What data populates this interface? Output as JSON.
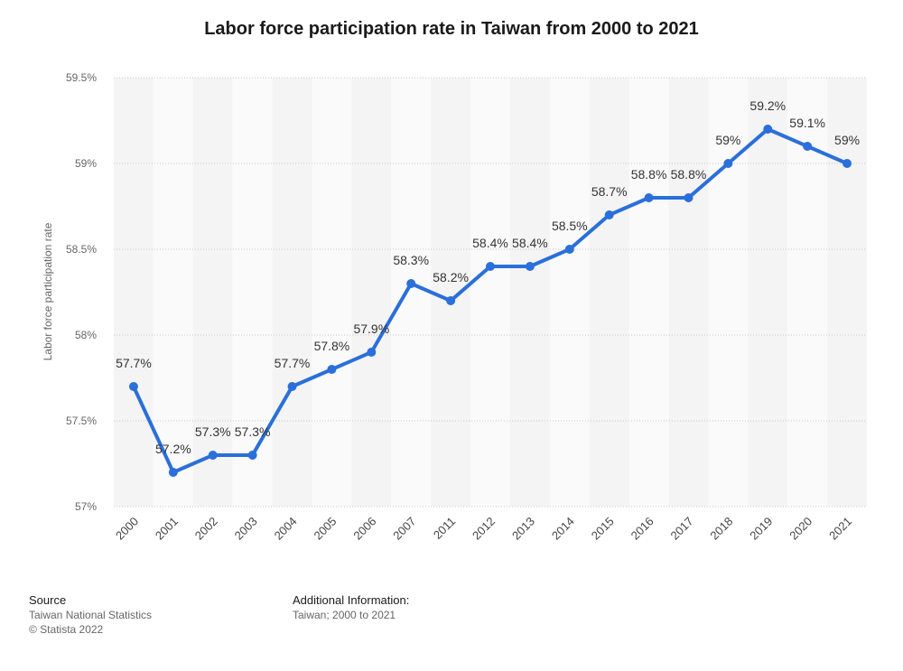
{
  "chart_data": {
    "type": "line",
    "title": "Labor force participation rate in Taiwan from 2000 to 2021",
    "xlabel": "",
    "ylabel": "Labor force participation rate",
    "categories": [
      "2000",
      "2001",
      "2002",
      "2003",
      "2004",
      "2005",
      "2006",
      "2007",
      "2011",
      "2012",
      "2013",
      "2014",
      "2015",
      "2016",
      "2017",
      "2018",
      "2019",
      "2020",
      "2021"
    ],
    "values": [
      57.7,
      57.2,
      57.3,
      57.3,
      57.7,
      57.8,
      57.9,
      58.3,
      58.2,
      58.4,
      58.4,
      58.5,
      58.7,
      58.8,
      58.8,
      59,
      59.2,
      59.1,
      59
    ],
    "value_labels": [
      "57.7%",
      "57.2%",
      "57.3%",
      "57.3%",
      "57.7%",
      "57.8%",
      "57.9%",
      "58.3%",
      "58.2%",
      "58.4%",
      "58.4%",
      "58.5%",
      "58.7%",
      "58.8%",
      "58.8%",
      "59%",
      "59.2%",
      "59.1%",
      "59%"
    ],
    "ylim": [
      57,
      59.5
    ],
    "yticks": [
      57,
      57.5,
      58,
      58.5,
      59,
      59.5
    ],
    "ytick_labels": [
      "57%",
      "57.5%",
      "58%",
      "58.5%",
      "59%",
      "59.5%"
    ],
    "grid": true,
    "line_color": "#2a6fdb"
  },
  "footer": {
    "source_heading": "Source",
    "source_line1": "Taiwan National Statistics",
    "source_line2": "© Statista 2022",
    "info_heading": "Additional Information:",
    "info_line1": "Taiwan; 2000 to 2021"
  }
}
